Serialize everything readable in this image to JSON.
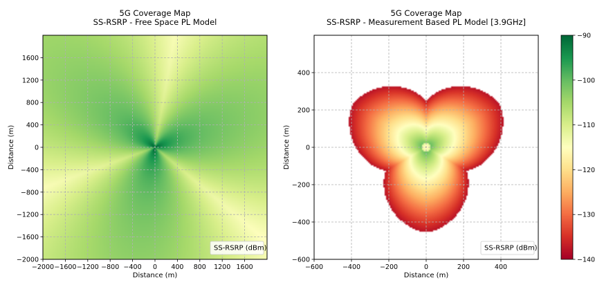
{
  "chart_data": [
    {
      "type": "heatmap",
      "title": "5G Coverage Map",
      "subtitle": "SS-RSRP - Free Space PL Model",
      "xlabel": "Distance (m)",
      "ylabel": "Distance (m)",
      "xlim": [
        -2000,
        2000
      ],
      "ylim": [
        -2000,
        2000
      ],
      "xticks": [
        -2000,
        -1600,
        -1200,
        -800,
        -400,
        0,
        400,
        800,
        1200,
        1600
      ],
      "yticks": [
        -2000,
        -1600,
        -1200,
        -800,
        -400,
        0,
        400,
        800,
        1200,
        1600
      ],
      "grid": true,
      "legend": "SS-RSRP (dBm)",
      "legend_position": "bottom-right",
      "sectors_deg": [
        20,
        140,
        260
      ],
      "value_range_dbm": [
        -115,
        -90
      ]
    },
    {
      "type": "heatmap",
      "title": "5G Coverage Map",
      "subtitle": "SS-RSRP - Measurement Based PL Model [3.9GHz]",
      "xlabel": "Distance (m)",
      "ylabel": "Distance (m)",
      "xlim": [
        -600,
        600
      ],
      "ylim": [
        -600,
        600
      ],
      "xticks": [
        -600,
        -400,
        -200,
        0,
        200,
        400
      ],
      "yticks": [
        -600,
        -400,
        -200,
        0,
        200,
        400
      ],
      "grid": true,
      "legend": "SS-RSRP (dBm)",
      "legend_position": "bottom-right",
      "sectors_deg": [
        30,
        150,
        270
      ],
      "coverage_radius_m": [
        250,
        455
      ],
      "value_range_dbm": [
        -140,
        -95
      ]
    }
  ],
  "colorbar": {
    "colormap": "RdYlGn",
    "min": -140,
    "max": -90,
    "ticks": [
      -90,
      -100,
      -110,
      -120,
      -130,
      -140
    ]
  }
}
